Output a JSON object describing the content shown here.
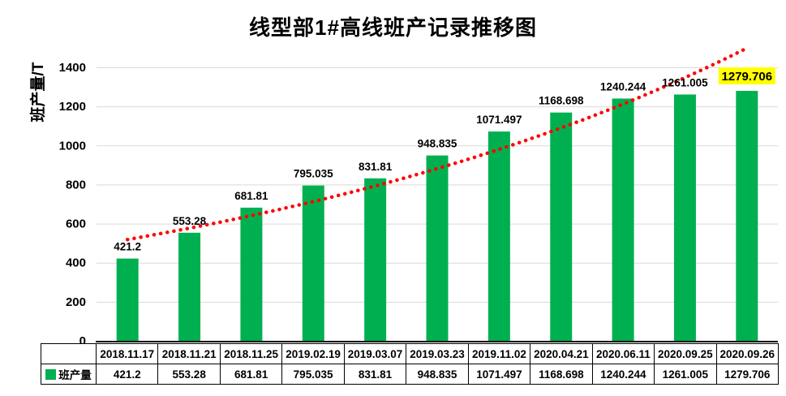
{
  "chart_data": {
    "type": "bar",
    "title": "线型部1#高线班产记录推移图",
    "ylabel": "班产量/T",
    "xlabel": "",
    "ylim": [
      0,
      1400
    ],
    "yticks": [
      0,
      200,
      400,
      600,
      800,
      1000,
      1200,
      1400
    ],
    "grid": true,
    "categories": [
      "2018.11.17",
      "2018.11.21",
      "2018.11.25",
      "2019.02.19",
      "2019.03.07",
      "2019.03.23",
      "2019.11.02",
      "2020.04.21",
      "2020.06.11",
      "2020.09.25",
      "2020.09.26"
    ],
    "series": [
      {
        "name": "班产量",
        "values": [
          421.2,
          553.28,
          681.81,
          795.035,
          831.81,
          948.835,
          1071.497,
          1168.698,
          1240.244,
          1261.005,
          1279.706
        ]
      }
    ],
    "data_labels": [
      "421.2",
      "553.28",
      "681.81",
      "795.035",
      "831.81",
      "948.835",
      "1071.497",
      "1168.698",
      "1240.244",
      "1261.005",
      "1279.706"
    ],
    "trendline": {
      "type": "exponential",
      "style": "dotted",
      "color": "#FF0000"
    },
    "bar_color": "#00B050",
    "gridline_color": "#D9D9D9",
    "axis_color": "#000000",
    "highlight_last_label": {
      "text": "1279.706",
      "text_color": "#FF0000",
      "background": "#FFFF00"
    },
    "legend_position": "data-table-left"
  }
}
